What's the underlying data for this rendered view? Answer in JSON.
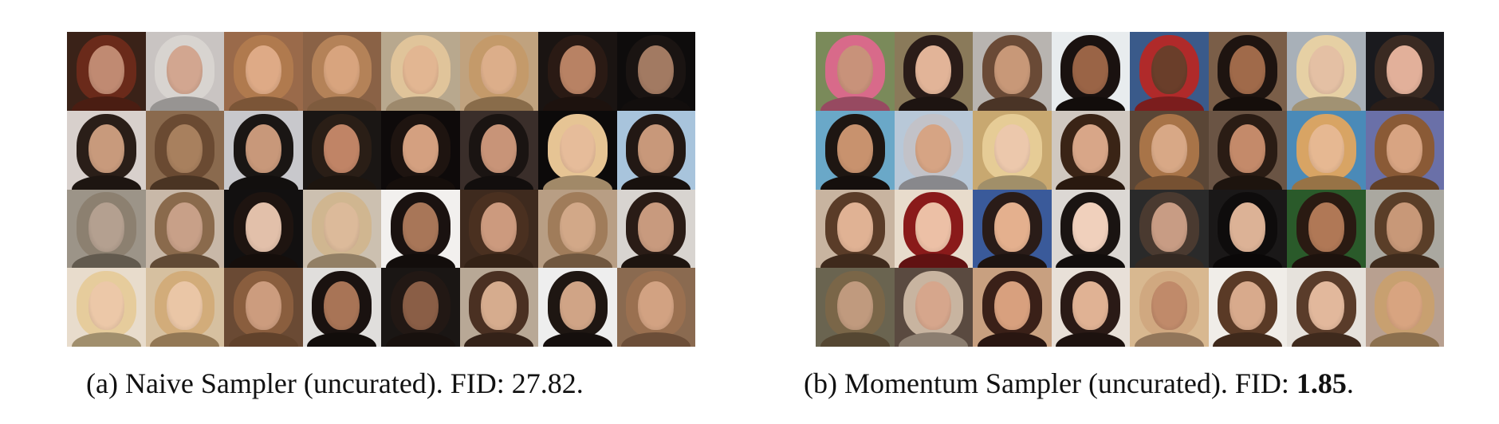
{
  "figure": {
    "panels": [
      {
        "caption_prefix": "(a) Naive Sampler (uncurated). FID: ",
        "fid": "27.82",
        "caption_suffix": ".",
        "fid_bold": false,
        "rows": 4,
        "cols": 8,
        "faces": [
          {
            "bg": "#3a2218",
            "skin": "#c08a72",
            "hair": "#6a2a1a"
          },
          {
            "bg": "#c9c4c2",
            "skin": "#d2a690",
            "hair": "#d8d4d0"
          },
          {
            "bg": "#9a6a4a",
            "skin": "#deaa86",
            "hair": "#b07a4e"
          },
          {
            "bg": "#8a6246",
            "skin": "#d8a47e",
            "hair": "#b48258"
          },
          {
            "bg": "#b8a88e",
            "skin": "#e2b692",
            "hair": "#e0c49a"
          },
          {
            "bg": "#c0a27e",
            "skin": "#dcae8a",
            "hair": "#c49a6a"
          },
          {
            "bg": "#1a1412",
            "skin": "#b88264",
            "hair": "#2a1a14"
          },
          {
            "bg": "#0e0c0c",
            "skin": "#a27a62",
            "hair": "#1a1412"
          },
          {
            "bg": "#d8d0cc",
            "skin": "#c89a7c",
            "hair": "#2a1e18"
          },
          {
            "bg": "#8a6a4e",
            "skin": "#a8805e",
            "hair": "#6a4a32"
          },
          {
            "bg": "#c8c8cc",
            "skin": "#c8987a",
            "hair": "#1a1614"
          },
          {
            "bg": "#1a1614",
            "skin": "#c08466",
            "hair": "#2a1e16"
          },
          {
            "bg": "#0e0a0a",
            "skin": "#d4a080",
            "hair": "#1e1410"
          },
          {
            "bg": "#3a2e2a",
            "skin": "#c89478",
            "hair": "#1a1412"
          },
          {
            "bg": "#0c0a0a",
            "skin": "#e6bc9a",
            "hair": "#e6c494"
          },
          {
            "bg": "#a8c4dc",
            "skin": "#c8987a",
            "hair": "#221814"
          },
          {
            "bg": "#9c9488",
            "skin": "#b4a090",
            "hair": "#8c8070"
          },
          {
            "bg": "#c8b8a8",
            "skin": "#c8a088",
            "hair": "#8a6a4c"
          },
          {
            "bg": "#121010",
            "skin": "#e2c0aa",
            "hair": "#1e1410"
          },
          {
            "bg": "#ccc0b0",
            "skin": "#dcba9a",
            "hair": "#d0b690"
          },
          {
            "bg": "#f2f0ee",
            "skin": "#a87658",
            "hair": "#1a1210"
          },
          {
            "bg": "#3e2a1e",
            "skin": "#cc9a7e",
            "hair": "#4a3020"
          },
          {
            "bg": "#b89e84",
            "skin": "#d2a888",
            "hair": "#a07c5a"
          },
          {
            "bg": "#d8d4d0",
            "skin": "#c89a7e",
            "hair": "#2a1c16"
          },
          {
            "bg": "#e8dccc",
            "skin": "#ecc8a8",
            "hair": "#e6cc9c"
          },
          {
            "bg": "#d6c0a0",
            "skin": "#eac6a6",
            "hair": "#d2ac7a"
          },
          {
            "bg": "#6a4a34",
            "skin": "#cc9c7e",
            "hair": "#8a5e3e"
          },
          {
            "bg": "#e0dedc",
            "skin": "#a87456",
            "hair": "#1a1210"
          },
          {
            "bg": "#1a1614",
            "skin": "#8a5e46",
            "hair": "#221814"
          },
          {
            "bg": "#b8a896",
            "skin": "#d6ac8e",
            "hair": "#4a3022"
          },
          {
            "bg": "#eeeeee",
            "skin": "#d0a486",
            "hair": "#1e1612"
          },
          {
            "bg": "#8a6a50",
            "skin": "#d2a282",
            "hair": "#9a7050"
          }
        ]
      },
      {
        "caption_prefix": "(b) Momentum Sampler (uncurated). FID: ",
        "fid": "1.85",
        "caption_suffix": ".",
        "fid_bold": true,
        "rows": 4,
        "cols": 8,
        "faces": [
          {
            "bg": "#7a8a5a",
            "skin": "#c8927a",
            "hair": "#d86a8a"
          },
          {
            "bg": "#8a7a5a",
            "skin": "#e2b498",
            "hair": "#2a1c18"
          },
          {
            "bg": "#b8b4b0",
            "skin": "#c89878",
            "hair": "#6a4a36"
          },
          {
            "bg": "#e8ecee",
            "skin": "#9a6446",
            "hair": "#1a1210"
          },
          {
            "bg": "#3a5a8a",
            "skin": "#6a3e2a",
            "hair": "#b02a2a"
          },
          {
            "bg": "#7a5e48",
            "skin": "#a06a4a",
            "hair": "#1e1410"
          },
          {
            "bg": "#a8b0b8",
            "skin": "#e4c0a4",
            "hair": "#e6d0a4"
          },
          {
            "bg": "#1a1a1e",
            "skin": "#e2b09a",
            "hair": "#3a2a22"
          },
          {
            "bg": "#6aa8c8",
            "skin": "#c8926e",
            "hair": "#1e1612"
          },
          {
            "bg": "#b8c8d8",
            "skin": "#d6a484",
            "hair": "#c2c2c8"
          },
          {
            "bg": "#c8a870",
            "skin": "#ecc8ac",
            "hair": "#e6cc96"
          },
          {
            "bg": "#d0c8c0",
            "skin": "#d8a688",
            "hair": "#3a2416"
          },
          {
            "bg": "#5a4636",
            "skin": "#d8a886",
            "hair": "#a87448"
          },
          {
            "bg": "#6a5444",
            "skin": "#c48a6a",
            "hair": "#2a1c14"
          },
          {
            "bg": "#4a8ab8",
            "skin": "#e6b892",
            "hair": "#d8a464"
          },
          {
            "bg": "#6a70a8",
            "skin": "#d8a482",
            "hair": "#8a5a36"
          },
          {
            "bg": "#c8b4a0",
            "skin": "#e0b294",
            "hair": "#5a3c28"
          },
          {
            "bg": "#e8dccc",
            "skin": "#ecc0a6",
            "hair": "#8a1a1a"
          },
          {
            "bg": "#3a5a9a",
            "skin": "#e4b08e",
            "hair": "#2a1c18"
          },
          {
            "bg": "#dcd8d4",
            "skin": "#f0d0bc",
            "hair": "#1a1412"
          },
          {
            "bg": "#2a2a2a",
            "skin": "#c89c84",
            "hair": "#4a3a30"
          },
          {
            "bg": "#1a1818",
            "skin": "#dcb296",
            "hair": "#0e0c0c"
          },
          {
            "bg": "#2a5a2a",
            "skin": "#b07856",
            "hair": "#2a1a12"
          },
          {
            "bg": "#aaa8a0",
            "skin": "#c89878",
            "hair": "#5a3e28"
          },
          {
            "bg": "#6a6450",
            "skin": "#c09a7e",
            "hair": "#7a6648"
          },
          {
            "bg": "#5a4a40",
            "skin": "#d6a68c",
            "hair": "#c8b4a0"
          },
          {
            "bg": "#c8a080",
            "skin": "#d8a07e",
            "hair": "#3a2018"
          },
          {
            "bg": "#e8e0d8",
            "skin": "#e0b294",
            "hair": "#2a1a16"
          },
          {
            "bg": "#d8b890",
            "skin": "#c08a6a",
            "hair": "#d0a880"
          },
          {
            "bg": "#f0ede8",
            "skin": "#d8aa8c",
            "hair": "#5a3a26"
          },
          {
            "bg": "#e6e2dc",
            "skin": "#e2b89c",
            "hair": "#5a3c2a"
          },
          {
            "bg": "#b8a090",
            "skin": "#d8a480",
            "hair": "#c8a070"
          }
        ]
      }
    ]
  }
}
